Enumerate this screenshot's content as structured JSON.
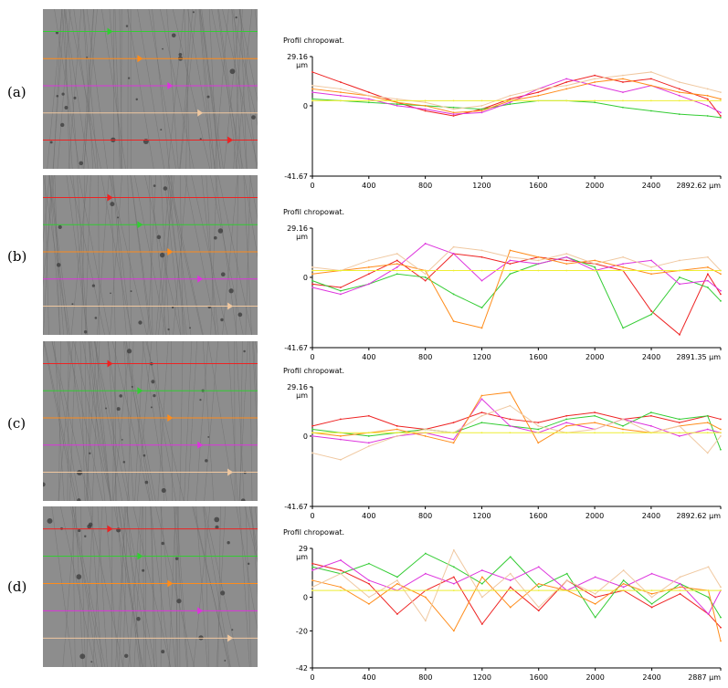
{
  "panels": [
    {
      "label": "(a)",
      "micrograph": {
        "line_colors": [
          "#33cc33",
          "#ff8c1a",
          "#dd33dd",
          "#f0c8a0",
          "#ee2222"
        ]
      },
      "chart_data": {
        "type": "line",
        "title": "Profil chropowat.",
        "ylabel_unit": "µm",
        "xlim": [
          0,
          2892.62
        ],
        "ylim": [
          -41.67,
          29.16
        ],
        "x_ticks": [
          "0",
          "400",
          "800",
          "1200",
          "1600",
          "2000",
          "2400",
          "2892.62 µm"
        ],
        "y_ticks": [
          "29.16",
          "0",
          "-41.67"
        ],
        "x": [
          0,
          200,
          400,
          600,
          800,
          1000,
          1200,
          1400,
          1600,
          1800,
          2000,
          2200,
          2400,
          2600,
          2800,
          2892
        ],
        "series": [
          {
            "color": "#ee2222",
            "values": [
              20,
              14,
              8,
              2,
              -3,
              -6,
              -2,
              4,
              8,
              14,
              18,
              14,
              16,
              10,
              4,
              -6
            ]
          },
          {
            "color": "#33cc33",
            "values": [
              4,
              3,
              2,
              1,
              0,
              -1,
              -2,
              1,
              3,
              3,
              2,
              -1,
              -3,
              -5,
              -6,
              -7
            ]
          },
          {
            "color": "#dd33dd",
            "values": [
              8,
              6,
              4,
              0,
              -2,
              -5,
              -4,
              2,
              10,
              16,
              12,
              8,
              12,
              6,
              0,
              -4
            ]
          },
          {
            "color": "#ff8c1a",
            "values": [
              10,
              8,
              6,
              2,
              0,
              -4,
              -3,
              3,
              6,
              10,
              14,
              16,
              12,
              8,
              6,
              4
            ]
          },
          {
            "color": "#f0c8a0",
            "values": [
              12,
              10,
              6,
              4,
              2,
              -2,
              0,
              6,
              10,
              12,
              16,
              18,
              20,
              14,
              10,
              8
            ]
          },
          {
            "color": "#eeee33",
            "values": [
              3,
              3,
              3,
              3,
              3,
              3,
              3,
              3,
              3,
              3,
              3,
              3,
              3,
              3,
              3,
              3
            ]
          }
        ]
      }
    },
    {
      "label": "(b)",
      "micrograph": {
        "line_colors": [
          "#ee2222",
          "#33cc33",
          "#ff8c1a",
          "#dd33dd",
          "#f0c8a0"
        ]
      },
      "chart_data": {
        "type": "line",
        "title": "Profil chropowat.",
        "ylabel_unit": "µm",
        "xlim": [
          0,
          2891.35
        ],
        "ylim": [
          -41.67,
          29.16
        ],
        "x_ticks": [
          "0",
          "400",
          "800",
          "1200",
          "1600",
          "2000",
          "2400",
          "2891.35 µm"
        ],
        "y_ticks": [
          "29.16",
          "0",
          "-41.67"
        ],
        "x": [
          0,
          200,
          400,
          600,
          800,
          1000,
          1200,
          1400,
          1600,
          1800,
          2000,
          2200,
          2400,
          2600,
          2800,
          2891
        ],
        "series": [
          {
            "color": "#ee2222",
            "values": [
              -4,
              -6,
              2,
              10,
              -2,
              14,
              12,
              8,
              12,
              10,
              8,
              4,
              -20,
              -34,
              2,
              -10
            ]
          },
          {
            "color": "#33cc33",
            "values": [
              -2,
              -8,
              -4,
              2,
              0,
              -10,
              -18,
              2,
              8,
              12,
              6,
              -30,
              -22,
              0,
              -6,
              -14
            ]
          },
          {
            "color": "#dd33dd",
            "values": [
              -6,
              -10,
              -4,
              6,
              20,
              14,
              -2,
              10,
              8,
              12,
              4,
              8,
              10,
              -4,
              -2,
              -8
            ]
          },
          {
            "color": "#ff8c1a",
            "values": [
              2,
              4,
              6,
              8,
              4,
              -26,
              -30,
              16,
              12,
              8,
              10,
              6,
              2,
              4,
              6,
              2
            ]
          },
          {
            "color": "#f0c8a0",
            "values": [
              6,
              4,
              10,
              14,
              2,
              18,
              16,
              12,
              10,
              14,
              8,
              12,
              6,
              10,
              12,
              4
            ]
          },
          {
            "color": "#eeee33",
            "values": [
              4,
              4,
              4,
              4,
              4,
              4,
              4,
              4,
              4,
              4,
              4,
              4,
              4,
              4,
              4,
              4
            ]
          }
        ]
      }
    },
    {
      "label": "(c)",
      "micrograph": {
        "line_colors": [
          "#ee2222",
          "#33cc33",
          "#ff8c1a",
          "#dd33dd",
          "#f0c8a0"
        ]
      },
      "chart_data": {
        "type": "line",
        "title": "Profil chropowat.",
        "ylabel_unit": "µm",
        "xlim": [
          0,
          2892.62
        ],
        "ylim": [
          -41.67,
          29.16
        ],
        "x_ticks": [
          "0",
          "400",
          "800",
          "1200",
          "1600",
          "2000",
          "2400",
          "2892.62 µm"
        ],
        "y_ticks": [
          "29.16",
          "0",
          "-41.67"
        ],
        "x": [
          0,
          200,
          400,
          600,
          800,
          1000,
          1200,
          1400,
          1600,
          1800,
          2000,
          2200,
          2400,
          2600,
          2800,
          2892
        ],
        "series": [
          {
            "color": "#ee2222",
            "values": [
              6,
              10,
              12,
              6,
              4,
              8,
              14,
              10,
              8,
              12,
              14,
              10,
              12,
              8,
              12,
              10
            ]
          },
          {
            "color": "#33cc33",
            "values": [
              4,
              2,
              0,
              2,
              4,
              2,
              8,
              6,
              4,
              10,
              12,
              6,
              14,
              10,
              12,
              -8
            ]
          },
          {
            "color": "#dd33dd",
            "values": [
              0,
              -2,
              -4,
              0,
              2,
              -2,
              22,
              6,
              2,
              8,
              4,
              10,
              6,
              0,
              4,
              2
            ]
          },
          {
            "color": "#ff8c1a",
            "values": [
              2,
              0,
              2,
              4,
              0,
              -4,
              24,
              26,
              -4,
              6,
              8,
              4,
              2,
              6,
              8,
              4
            ]
          },
          {
            "color": "#f0c8a0",
            "values": [
              -10,
              -14,
              -6,
              0,
              4,
              2,
              12,
              18,
              6,
              2,
              4,
              10,
              2,
              6,
              -10,
              0
            ]
          },
          {
            "color": "#eeee33",
            "values": [
              2,
              2,
              2,
              2,
              2,
              2,
              2,
              2,
              2,
              2,
              2,
              2,
              2,
              2,
              2,
              2
            ]
          }
        ]
      }
    },
    {
      "label": "(d)",
      "micrograph": {
        "line_colors": [
          "#ee2222",
          "#33cc33",
          "#ff8c1a",
          "#dd33dd",
          "#f0c8a0"
        ]
      },
      "chart_data": {
        "type": "line",
        "title": "Profil chropowat.",
        "ylabel_unit": "µm",
        "xlim": [
          0,
          2887
        ],
        "ylim": [
          -42,
          29
        ],
        "x_ticks": [
          "0",
          "400",
          "800",
          "1200",
          "1600",
          "2000",
          "2400",
          "2887 µm"
        ],
        "y_ticks": [
          "29",
          "0",
          "-20",
          "-42"
        ],
        "x": [
          0,
          200,
          400,
          600,
          800,
          1000,
          1200,
          1400,
          1600,
          1800,
          2000,
          2200,
          2400,
          2600,
          2800,
          2887
        ],
        "series": [
          {
            "color": "#ee2222",
            "values": [
              20,
              16,
              8,
              -10,
              4,
              12,
              -16,
              6,
              -8,
              10,
              0,
              4,
              -6,
              2,
              -10,
              -18
            ]
          },
          {
            "color": "#33cc33",
            "values": [
              18,
              14,
              20,
              12,
              26,
              18,
              8,
              24,
              6,
              14,
              -12,
              10,
              -4,
              8,
              0,
              -12
            ]
          },
          {
            "color": "#dd33dd",
            "values": [
              16,
              22,
              10,
              4,
              14,
              8,
              16,
              10,
              18,
              4,
              12,
              6,
              14,
              8,
              -10,
              4
            ]
          },
          {
            "color": "#ff8c1a",
            "values": [
              10,
              6,
              -4,
              8,
              0,
              -20,
              12,
              -6,
              8,
              4,
              -4,
              8,
              2,
              6,
              4,
              -26
            ]
          },
          {
            "color": "#f0c8a0",
            "values": [
              6,
              14,
              0,
              10,
              -14,
              28,
              0,
              14,
              -6,
              10,
              2,
              16,
              0,
              12,
              18,
              6
            ]
          },
          {
            "color": "#eeee33",
            "values": [
              4,
              4,
              4,
              4,
              4,
              4,
              4,
              4,
              4,
              4,
              4,
              4,
              4,
              4,
              4,
              4
            ]
          }
        ]
      }
    }
  ]
}
